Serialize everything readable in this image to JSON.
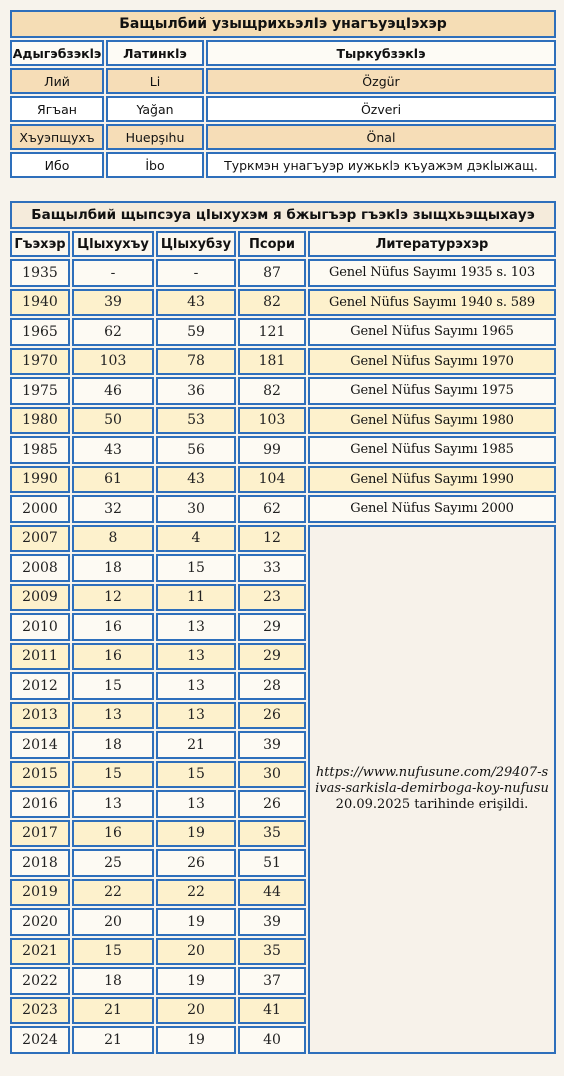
{
  "alphabet_table": {
    "title": "Бащылбий узыщрихьэлIэ унагъуэцIэхэр",
    "headers": [
      "Адыгэбзэкlэ",
      "Латинкlэ",
      "Тыркубзэкlэ"
    ],
    "rows": [
      [
        "Лий",
        "Li",
        "Özgür"
      ],
      [
        "Ягъан",
        "Yağan",
        "Özveri"
      ],
      [
        "Хъуэпщухъ",
        "Huepşıhu",
        "Önal"
      ],
      [
        "Ибо",
        "İbo",
        "Туркмэн унагъуэр иужькlэ къуажэм дэкlыжащ."
      ]
    ]
  },
  "population_table": {
    "title": "Бащылбий щыпсэуа цIыхухэм я бжыгъэр гъэкlэ зыщхьэщыхауэ",
    "headers": [
      "Гъэхэр",
      "Цlыхухъу",
      "Цlыхубзу",
      "Псори",
      "Литературэхэр"
    ],
    "rows": [
      [
        "1935",
        "-",
        "-",
        "87",
        "Genel Nüfus Sayımı 1935 s. 103"
      ],
      [
        "1940",
        "39",
        "43",
        "82",
        "Genel Nüfus Sayımı 1940 s. 589"
      ],
      [
        "1965",
        "62",
        "59",
        "121",
        "Genel Nüfus Sayımı 1965"
      ],
      [
        "1970",
        "103",
        "78",
        "181",
        "Genel Nüfus Sayımı 1970"
      ],
      [
        "1975",
        "46",
        "36",
        "82",
        "Genel Nüfus Sayımı 1975"
      ],
      [
        "1980",
        "50",
        "53",
        "103",
        "Genel Nüfus Sayımı 1980"
      ],
      [
        "1985",
        "43",
        "56",
        "99",
        "Genel Nüfus Sayımı 1985"
      ],
      [
        "1990",
        "61",
        "43",
        "104",
        "Genel Nüfus Sayımı 1990"
      ],
      [
        "2000",
        "32",
        "30",
        "62",
        "Genel Nüfus Sayımı 2000"
      ],
      [
        "2007",
        "8",
        "4",
        "12"
      ],
      [
        "2008",
        "18",
        "15",
        "33"
      ],
      [
        "2009",
        "12",
        "11",
        "23"
      ],
      [
        "2010",
        "16",
        "13",
        "29"
      ],
      [
        "2011",
        "16",
        "13",
        "29"
      ],
      [
        "2012",
        "15",
        "13",
        "28"
      ],
      [
        "2013",
        "13",
        "13",
        "26"
      ],
      [
        "2014",
        "18",
        "21",
        "39"
      ],
      [
        "2015",
        "15",
        "15",
        "30"
      ],
      [
        "2016",
        "13",
        "13",
        "26"
      ],
      [
        "2017",
        "16",
        "19",
        "35"
      ],
      [
        "2018",
        "25",
        "26",
        "51"
      ],
      [
        "2019",
        "22",
        "22",
        "44"
      ],
      [
        "2020",
        "20",
        "19",
        "39"
      ],
      [
        "2021",
        "15",
        "20",
        "35"
      ],
      [
        "2022",
        "18",
        "19",
        "37"
      ],
      [
        "2023",
        "21",
        "20",
        "41"
      ],
      [
        "2024",
        "21",
        "19",
        "40"
      ]
    ],
    "merged_source": {
      "url": "https://www.nufusune.com/29407-sivas-sarkisla-demirboga-koy-nufusu",
      "accessed": "20.09.2025 tarihinde erişildi."
    }
  },
  "colors": {
    "border": "#2e6fbb",
    "title_bg": "#f5ddb5",
    "band_bg": "#f6ddb7",
    "even_row_bg": "#fdf1cc",
    "page_bg": "#f7f3ec"
  }
}
